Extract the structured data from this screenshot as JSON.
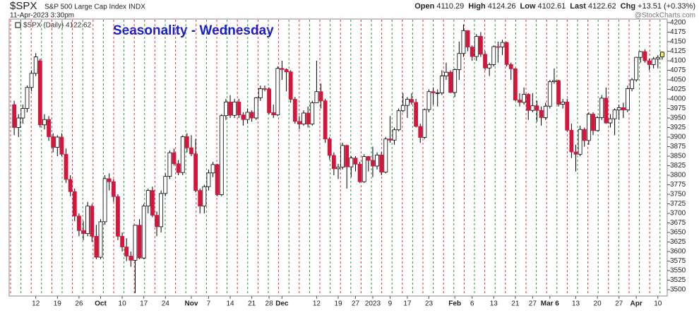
{
  "header": {
    "symbol": "$SPX",
    "name": "S&P 500 Large Cap Index",
    "exchange": "INDX",
    "timestamp": "11-Apr-2023 3:30pm",
    "quote": [
      {
        "label": "Open",
        "value": "4110.29"
      },
      {
        "label": "High",
        "value": "4124.26"
      },
      {
        "label": "Low",
        "value": "4102.61"
      },
      {
        "label": "Last",
        "value": "4122.62"
      },
      {
        "label": "Chg",
        "value": "+13.51 (+0.33%)"
      }
    ],
    "credit": "@StockCharts.com"
  },
  "chart_data": {
    "type": "candlestick",
    "title": "Seasonality - Wednesday",
    "legend": "$SPX (Daily) 4122.62",
    "up_color": "#ffffff",
    "down_color": "#d4163c",
    "highlight_color": "#f4e06a",
    "marker_colors": [
      "#e03030",
      "#2a9a2a"
    ],
    "candles": [
      [
        3985,
        3995,
        3905,
        3925
      ],
      [
        3925,
        3960,
        3900,
        3950
      ],
      [
        3950,
        3985,
        3935,
        3975
      ],
      [
        3975,
        4035,
        3965,
        4030
      ],
      [
        4030,
        4075,
        4020,
        4067
      ],
      [
        4067,
        4120,
        4060,
        4110
      ],
      [
        4100,
        4105,
        3925,
        3932
      ],
      [
        3932,
        3960,
        3920,
        3946
      ],
      [
        3946,
        3955,
        3890,
        3901
      ],
      [
        3901,
        3910,
        3860,
        3873
      ],
      [
        3873,
        3905,
        3850,
        3900
      ],
      [
        3900,
        3910,
        3850,
        3855
      ],
      [
        3855,
        3870,
        3780,
        3789
      ],
      [
        3789,
        3800,
        3745,
        3757
      ],
      [
        3757,
        3765,
        3680,
        3693
      ],
      [
        3693,
        3700,
        3640,
        3655
      ],
      [
        3655,
        3680,
        3630,
        3647
      ],
      [
        3647,
        3730,
        3640,
        3719
      ],
      [
        3719,
        3725,
        3625,
        3640
      ],
      [
        3640,
        3670,
        3580,
        3585
      ],
      [
        3585,
        3685,
        3580,
        3678
      ],
      [
        3678,
        3800,
        3670,
        3791
      ],
      [
        3791,
        3805,
        3760,
        3783
      ],
      [
        3783,
        3790,
        3730,
        3744
      ],
      [
        3744,
        3750,
        3630,
        3640
      ],
      [
        3640,
        3650,
        3600,
        3612
      ],
      [
        3612,
        3635,
        3575,
        3588
      ],
      [
        3588,
        3600,
        3560,
        3577
      ],
      [
        3577,
        3670,
        3491,
        3669
      ],
      [
        3669,
        3685,
        3580,
        3583
      ],
      [
        3583,
        3725,
        3580,
        3719
      ],
      [
        3719,
        3765,
        3700,
        3760
      ],
      [
        3760,
        3770,
        3690,
        3695
      ],
      [
        3695,
        3705,
        3640,
        3665
      ],
      [
        3665,
        3760,
        3650,
        3752
      ],
      [
        3752,
        3805,
        3745,
        3797
      ],
      [
        3797,
        3865,
        3790,
        3859
      ],
      [
        3859,
        3870,
        3825,
        3830
      ],
      [
        3830,
        3840,
        3800,
        3807
      ],
      [
        3807,
        3905,
        3800,
        3901
      ],
      [
        3901,
        3910,
        3860,
        3872
      ],
      [
        3872,
        3905,
        3850,
        3856
      ],
      [
        3856,
        3895,
        3755,
        3760
      ],
      [
        3760,
        3765,
        3700,
        3719
      ],
      [
        3719,
        3775,
        3700,
        3770
      ],
      [
        3770,
        3815,
        3760,
        3806
      ],
      [
        3806,
        3835,
        3795,
        3828
      ],
      [
        3828,
        3830,
        3745,
        3749
      ],
      [
        3749,
        3960,
        3745,
        3956
      ],
      [
        3956,
        4000,
        3945,
        3992
      ],
      [
        3992,
        4010,
        3950,
        3957
      ],
      [
        3957,
        4000,
        3950,
        3992
      ],
      [
        3992,
        4000,
        3950,
        3958
      ],
      [
        3958,
        3965,
        3930,
        3946
      ],
      [
        3946,
        3975,
        3935,
        3965
      ],
      [
        3965,
        3970,
        3940,
        3950
      ],
      [
        3950,
        4005,
        3945,
        4003
      ],
      [
        4003,
        4035,
        3995,
        4027
      ],
      [
        4027,
        4035,
        4020,
        4026
      ],
      [
        4026,
        4030,
        3960,
        3964
      ],
      [
        3964,
        3985,
        3950,
        3958
      ],
      [
        3958,
        4085,
        3955,
        4080
      ],
      [
        4080,
        4100,
        4050,
        4077
      ],
      [
        4077,
        4080,
        4020,
        4071
      ],
      [
        4071,
        4075,
        3990,
        3999
      ],
      [
        3999,
        4005,
        3935,
        3941
      ],
      [
        3941,
        3955,
        3920,
        3934
      ],
      [
        3934,
        3970,
        3930,
        3963
      ],
      [
        3963,
        3980,
        3925,
        3934
      ],
      [
        3934,
        3995,
        3930,
        3990
      ],
      [
        3990,
        4100,
        3990,
        4019
      ],
      [
        4019,
        4040,
        3975,
        3995
      ],
      [
        3995,
        4000,
        3885,
        3895
      ],
      [
        3895,
        3900,
        3840,
        3852
      ],
      [
        3852,
        3860,
        3800,
        3817
      ],
      [
        3817,
        3830,
        3790,
        3821
      ],
      [
        3821,
        3885,
        3815,
        3878
      ],
      [
        3878,
        3880,
        3765,
        3822
      ],
      [
        3822,
        3850,
        3795,
        3845
      ],
      [
        3845,
        3850,
        3810,
        3829
      ],
      [
        3829,
        3835,
        3780,
        3783
      ],
      [
        3783,
        3855,
        3780,
        3849
      ],
      [
        3849,
        3850,
        3810,
        3839
      ],
      [
        3839,
        3875,
        3795,
        3824
      ],
      [
        3824,
        3860,
        3815,
        3853
      ],
      [
        3853,
        3860,
        3800,
        3808
      ],
      [
        3808,
        3900,
        3805,
        3895
      ],
      [
        3895,
        3955,
        3885,
        3892
      ],
      [
        3892,
        3925,
        3880,
        3919
      ],
      [
        3919,
        3975,
        3915,
        3969
      ],
      [
        3969,
        4015,
        3965,
        3983
      ],
      [
        3983,
        4005,
        3950,
        3999
      ],
      [
        3999,
        4015,
        3985,
        3991
      ],
      [
        3991,
        4000,
        3925,
        3928
      ],
      [
        3928,
        3935,
        3885,
        3899
      ],
      [
        3899,
        3975,
        3895,
        3972
      ],
      [
        3972,
        4025,
        3965,
        4019
      ],
      [
        4019,
        4030,
        3985,
        4016
      ],
      [
        4016,
        4025,
        3980,
        4016
      ],
      [
        4016,
        4075,
        4010,
        4060
      ],
      [
        4060,
        4095,
        4050,
        4070
      ],
      [
        4070,
        4075,
        4015,
        4017
      ],
      [
        4017,
        4080,
        4005,
        4077
      ],
      [
        4077,
        4150,
        4050,
        4119
      ],
      [
        4119,
        4195,
        4110,
        4179
      ],
      [
        4179,
        4180,
        4125,
        4136
      ],
      [
        4136,
        4140,
        4100,
        4111
      ],
      [
        4111,
        4170,
        4100,
        4164
      ],
      [
        4164,
        4175,
        4110,
        4117
      ],
      [
        4117,
        4125,
        4075,
        4081
      ],
      [
        4081,
        4095,
        4060,
        4090
      ],
      [
        4090,
        4140,
        4085,
        4137
      ],
      [
        4137,
        4150,
        4095,
        4136
      ],
      [
        4136,
        4155,
        4115,
        4148
      ],
      [
        4148,
        4150,
        4085,
        4090
      ],
      [
        4090,
        4095,
        4050,
        4079
      ],
      [
        4079,
        4080,
        3995,
        3997
      ],
      [
        3997,
        4015,
        3980,
        3991
      ],
      [
        3991,
        4030,
        3985,
        4012
      ],
      [
        4012,
        4015,
        3945,
        3970
      ],
      [
        3970,
        4015,
        3965,
        3982
      ],
      [
        3982,
        3995,
        3940,
        3970
      ],
      [
        3970,
        3980,
        3930,
        3951
      ],
      [
        3951,
        3990,
        3945,
        3981
      ],
      [
        3981,
        4050,
        3975,
        4045
      ],
      [
        4045,
        4080,
        4040,
        4048
      ],
      [
        4048,
        4050,
        3980,
        3986
      ],
      [
        3986,
        4000,
        3975,
        3992
      ],
      [
        3992,
        4000,
        3915,
        3918
      ],
      [
        3918,
        3935,
        3845,
        3861
      ],
      [
        3861,
        3880,
        3810,
        3855
      ],
      [
        3855,
        3930,
        3850,
        3920
      ],
      [
        3920,
        3925,
        3875,
        3891
      ],
      [
        3891,
        3965,
        3880,
        3960
      ],
      [
        3960,
        3965,
        3905,
        3917
      ],
      [
        3917,
        3955,
        3915,
        3951
      ],
      [
        3951,
        4010,
        3945,
        4002
      ],
      [
        4002,
        4030,
        3935,
        3937
      ],
      [
        3937,
        3960,
        3925,
        3948
      ],
      [
        3948,
        3975,
        3905,
        3971
      ],
      [
        3971,
        3985,
        3945,
        3977
      ],
      [
        3977,
        3990,
        3950,
        3971
      ],
      [
        3971,
        4035,
        3965,
        4027
      ],
      [
        4027,
        4055,
        4020,
        4050
      ],
      [
        4050,
        4110,
        4045,
        4109
      ],
      [
        4109,
        4125,
        4095,
        4124
      ],
      [
        4124,
        4130,
        4095,
        4100
      ],
      [
        4100,
        4105,
        4075,
        4090
      ],
      [
        4090,
        4110,
        4080,
        4105
      ],
      [
        4105,
        4115,
        4080,
        4109
      ],
      [
        4110.29,
        4124.26,
        4102.61,
        4122.62
      ]
    ],
    "xticks": [
      {
        "value": 5,
        "label": "12"
      },
      {
        "value": 10,
        "label": "19"
      },
      {
        "value": 15,
        "label": "26"
      },
      {
        "value": 20,
        "label": "Oct"
      },
      {
        "value": 25,
        "label": "10"
      },
      {
        "value": 30,
        "label": "17"
      },
      {
        "value": 35,
        "label": "24"
      },
      {
        "value": 41,
        "label": "Nov"
      },
      {
        "value": 45,
        "label": "7"
      },
      {
        "value": 50,
        "label": "14"
      },
      {
        "value": 55,
        "label": "21"
      },
      {
        "value": 59,
        "label": "28"
      },
      {
        "value": 62,
        "label": "Dec"
      },
      {
        "value": 70,
        "label": "12"
      },
      {
        "value": 75,
        "label": "19"
      },
      {
        "value": 79,
        "label": "27"
      },
      {
        "value": 83,
        "label": "2023"
      },
      {
        "value": 87,
        "label": "9"
      },
      {
        "value": 91,
        "label": "17"
      },
      {
        "value": 96,
        "label": "23"
      },
      {
        "value": 102,
        "label": "Feb"
      },
      {
        "value": 106,
        "label": "6"
      },
      {
        "value": 111,
        "label": "13"
      },
      {
        "value": 116,
        "label": "21"
      },
      {
        "value": 120,
        "label": "27"
      },
      {
        "value": 124,
        "label": "Mar 6"
      },
      {
        "value": 130,
        "label": "13"
      },
      {
        "value": 135,
        "label": "20"
      },
      {
        "value": 140,
        "label": "27"
      },
      {
        "value": 144,
        "label": "Apr"
      },
      {
        "value": 149,
        "label": "10"
      }
    ],
    "xlim": [
      -1,
      151
    ],
    "ylim": [
      3500,
      4200
    ],
    "yticks": [
      3500,
      3525,
      3550,
      3575,
      3600,
      3625,
      3650,
      3675,
      3700,
      3725,
      3750,
      3775,
      3800,
      3825,
      3850,
      3875,
      3900,
      3925,
      3950,
      3975,
      4000,
      4025,
      4050,
      4075,
      4100,
      4125,
      4150,
      4175,
      4200
    ]
  }
}
